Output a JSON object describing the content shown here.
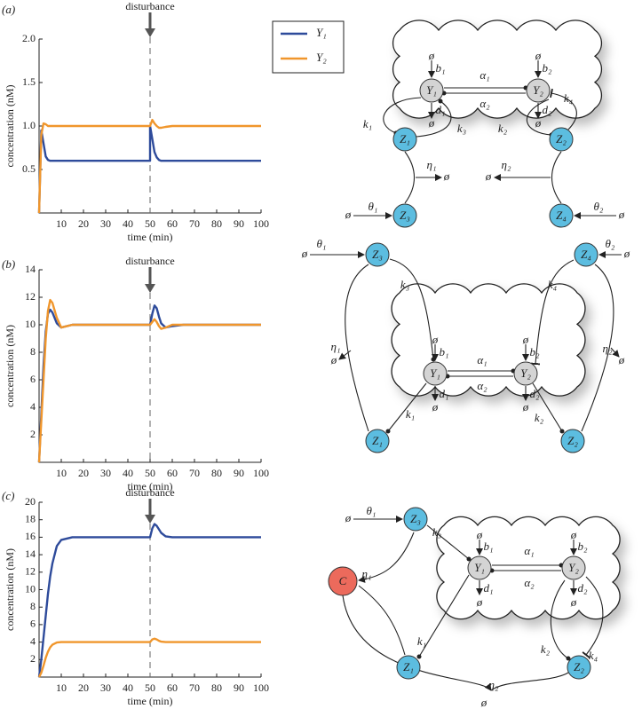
{
  "chart_data": [
    {
      "type": "line",
      "panel_label": "(a)",
      "annotation": "disturbance",
      "xlabel": "time (min)",
      "ylabel": "concentration (nM)",
      "xlim": [
        0,
        100
      ],
      "xticks": [
        10,
        20,
        30,
        40,
        50,
        60,
        70,
        80,
        90,
        100
      ],
      "ylim": [
        0,
        2
      ],
      "yticks": [
        0.5,
        {
          "value": 1,
          "label": "1.0"
        },
        1.5,
        {
          "value": 2,
          "label": "2.0"
        }
      ],
      "x": [
        0,
        1,
        2,
        3,
        4,
        5,
        6,
        8,
        10,
        15,
        20,
        30,
        40,
        50,
        50,
        51,
        52,
        53,
        54,
        55,
        57,
        60,
        65,
        70,
        80,
        90,
        100
      ],
      "series": [
        {
          "name": "Y₁",
          "color": "#2e4b9b",
          "values": [
            0,
            0.95,
            0.8,
            0.65,
            0.61,
            0.6,
            0.6,
            0.6,
            0.6,
            0.6,
            0.6,
            0.6,
            0.6,
            0.6,
            1.0,
            0.85,
            0.7,
            0.64,
            0.61,
            0.6,
            0.6,
            0.6,
            0.6,
            0.6,
            0.6,
            0.6,
            0.6
          ]
        },
        {
          "name": "Y₂",
          "color": "#f0962c",
          "values": [
            0,
            0.9,
            1.03,
            1.02,
            1.0,
            1.0,
            1.0,
            1.0,
            1.0,
            1.0,
            1.0,
            1.0,
            1.0,
            1.0,
            1.0,
            1.07,
            1.03,
            1.0,
            0.98,
            0.98,
            0.99,
            1.0,
            1.0,
            1.0,
            1.0,
            1.0,
            1.0
          ]
        }
      ]
    },
    {
      "type": "line",
      "panel_label": "(b)",
      "annotation": "disturbance",
      "xlabel": "time (min)",
      "ylabel": "concentration (nM)",
      "xlim": [
        0,
        100
      ],
      "xticks": [
        10,
        20,
        30,
        40,
        50,
        60,
        70,
        80,
        90,
        100
      ],
      "ylim": [
        0,
        14
      ],
      "yticks": [
        2,
        4,
        6,
        8,
        10,
        12,
        14
      ],
      "x": [
        0,
        1,
        2,
        3,
        4,
        5,
        6,
        8,
        10,
        15,
        20,
        30,
        40,
        50,
        50,
        51,
        52,
        53,
        54,
        55,
        57,
        60,
        65,
        70,
        80,
        90,
        100
      ],
      "series": [
        {
          "color": "#2e4b9b",
          "values": [
            0,
            3.5,
            7,
            9.5,
            10.8,
            11.1,
            10.9,
            10.1,
            9.8,
            10,
            10,
            10,
            10,
            10,
            10,
            10.8,
            11.4,
            11.2,
            10.6,
            10.1,
            9.8,
            9.9,
            10,
            10,
            10,
            10,
            10
          ]
        },
        {
          "color": "#f0962c",
          "values": [
            0,
            3,
            6,
            9,
            11,
            11.8,
            11.6,
            10.5,
            9.8,
            10,
            10,
            10,
            10,
            10,
            10,
            10.2,
            10.4,
            10.2,
            9.9,
            9.7,
            9.8,
            10,
            10,
            10,
            10,
            10,
            10
          ]
        }
      ]
    },
    {
      "type": "line",
      "panel_label": "(c)",
      "annotation": "disturbance",
      "xlabel": "time (min)",
      "ylabel": "concentration (nM)",
      "xlim": [
        0,
        100
      ],
      "xticks": [
        10,
        20,
        30,
        40,
        50,
        60,
        70,
        80,
        90,
        100
      ],
      "ylim": [
        0,
        20
      ],
      "yticks": [
        2,
        4,
        6,
        8,
        10,
        12,
        14,
        16,
        18,
        20
      ],
      "x": [
        0,
        1,
        2,
        3,
        4,
        5,
        6,
        8,
        10,
        15,
        20,
        30,
        40,
        50,
        50,
        51,
        52,
        53,
        54,
        55,
        57,
        60,
        65,
        70,
        80,
        90,
        100
      ],
      "series": [
        {
          "color": "#2e4b9b",
          "values": [
            0,
            2,
            4.5,
            7,
            9.5,
            11.5,
            13,
            15,
            15.7,
            16,
            16,
            16,
            16,
            16,
            16,
            17,
            17.5,
            17.3,
            16.9,
            16.5,
            16.1,
            16,
            16,
            16,
            16,
            16,
            16
          ]
        },
        {
          "color": "#f0962c",
          "values": [
            0,
            0.5,
            1.3,
            2.2,
            2.9,
            3.4,
            3.7,
            3.95,
            4,
            4,
            4,
            4,
            4,
            4,
            4,
            4.3,
            4.4,
            4.3,
            4.15,
            4.05,
            4,
            4,
            4,
            4,
            4,
            4,
            4
          ]
        }
      ]
    }
  ],
  "diagrams": [
    {
      "nodes": [
        "Y₁",
        "Y₂",
        "Z₁",
        "Z₂",
        "Z₃",
        "Z₄"
      ],
      "labels": [
        "ø",
        "b₁",
        "d₁",
        "ø",
        "ø",
        "b₂",
        "d₂",
        "ø",
        "α₁",
        "α₂",
        "k₁",
        "k₃",
        "k₂",
        "k₄",
        "η₁",
        "ø",
        "η₂",
        "ø",
        "θ₁",
        "ø",
        "θ₂",
        "ø"
      ]
    },
    {
      "nodes": [
        "Y₁",
        "Y₂",
        "Z₃",
        "Z₄",
        "Z₁",
        "Z₂"
      ],
      "labels": [
        "ø",
        "b₁",
        "d₁",
        "ø",
        "ø",
        "b₂",
        "d₂",
        "ø",
        "α₁",
        "α₂",
        "θ₁",
        "ø",
        "θ₂",
        "ø",
        "k₃",
        "k₄",
        "k₁",
        "k₂",
        "η₁",
        "ø",
        "η₂",
        "ø"
      ]
    },
    {
      "nodes": [
        "Y₁",
        "Y₂",
        "Z₃",
        "C",
        "Z₁",
        "Z₂"
      ],
      "labels": [
        "ø",
        "b₁",
        "d₁",
        "ø",
        "ø",
        "b₂",
        "d₂",
        "ø",
        "α₁",
        "α₂",
        "θ₁",
        "ø",
        "k₃",
        "η₁",
        "k₁",
        "k₂",
        "k₄",
        "η₂",
        "ø"
      ]
    }
  ]
}
